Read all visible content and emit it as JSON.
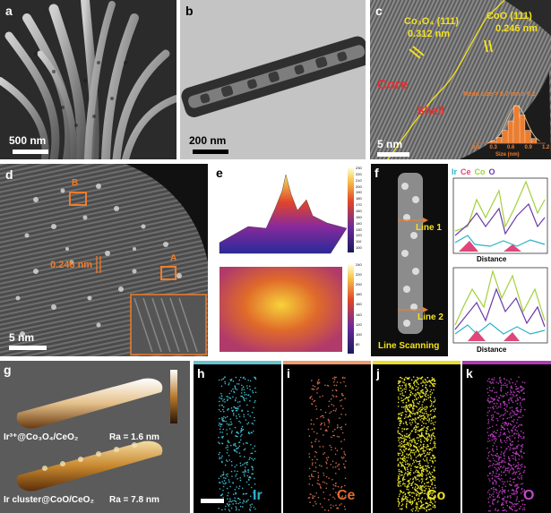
{
  "colors": {
    "ir": "#2ab3c9",
    "ce": "#e0457b",
    "co": "#a3d13c",
    "o": "#6b3aa6",
    "orange": "#f07c2a",
    "yellow": "#f5e21c",
    "red": "#e53030",
    "bar_h": "#64c3cf",
    "bar_i": "#ef9b6e",
    "bar_j": "#e8de2a",
    "bar_k": "#b03ab5"
  },
  "panel_a": {
    "label": "a",
    "scale": "500 nm"
  },
  "panel_b": {
    "label": "b",
    "scale": "200 nm"
  },
  "panel_c": {
    "label": "c",
    "scale": "5 nm",
    "lattice_left": "Co₃O₄ (111)",
    "spacing_left": "0.312 nm",
    "lattice_right": "CoO (111)",
    "spacing_right": "0.246 nm",
    "core": "Core",
    "shell": "Shell",
    "hist_title": "Mean size = 0.7 nm ± 0.2",
    "hist_xlabel": "Size (nm)",
    "hist_ticks": [
      "0.0",
      "0.3",
      "0.6",
      "0.9",
      "1.2"
    ]
  },
  "panel_d": {
    "label": "d",
    "scale": "5 nm",
    "box_a": "A",
    "box_b": "B",
    "spacing": "0.246 nm"
  },
  "panel_e": {
    "label": "e",
    "ticks_top": [
      "230",
      "220",
      "210",
      "200",
      "190",
      "180",
      "170",
      "160",
      "150",
      "140",
      "130",
      "120",
      "110",
      "100"
    ],
    "ticks_bottom": [
      "240",
      "220",
      "200",
      "180",
      "160",
      "140",
      "120",
      "100",
      "80"
    ]
  },
  "panel_f": {
    "label": "f",
    "legend": [
      "Ir",
      "Ce",
      "Co",
      "O"
    ],
    "line1": "Line 1",
    "line2": "Line 2",
    "distance": "Distance",
    "scanning": "Line Scanning"
  },
  "panel_g": {
    "label": "g",
    "top_name": "Ir³⁺@Co₃O₄/CeO₂",
    "top_ra": "Ra = 1.6 nm",
    "bottom_name": "Ir cluster@CoO/CeO₂",
    "bottom_ra": "Ra = 7.8 nm"
  },
  "panel_h": {
    "label": "h",
    "element": "Ir"
  },
  "panel_i": {
    "label": "i",
    "element": "Ce"
  },
  "panel_j": {
    "label": "j",
    "element": "Co"
  },
  "panel_k": {
    "label": "k",
    "element": "O"
  },
  "chart_data": {
    "type": "bar",
    "title": "Mean size = 0.7 nm ± 0.2",
    "xlabel": "Size (nm)",
    "ylabel": "",
    "categories": [
      "0.3",
      "0.4",
      "0.5",
      "0.6",
      "0.7",
      "0.8",
      "0.9",
      "1.0"
    ],
    "values": [
      4,
      10,
      22,
      38,
      64,
      48,
      22,
      8
    ],
    "xlim": [
      0.0,
      1.2
    ]
  }
}
